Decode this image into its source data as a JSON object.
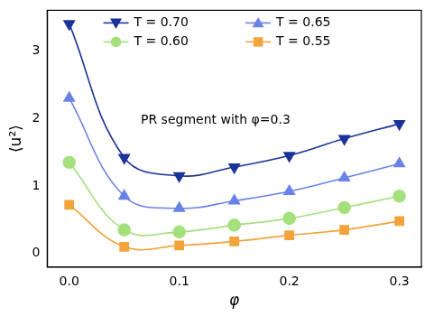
{
  "chart_data": {
    "type": "line",
    "x_label": "φ",
    "y_label": "⟨u²⟩",
    "annotation": "PR segment with φ=0.3",
    "x": [
      0,
      0.05,
      0.1,
      0.15,
      0.2,
      0.25,
      0.3
    ],
    "series": [
      {
        "name": "T = 0.70",
        "color": "#1a3399",
        "marker": "triangle_down",
        "values": [
          3.4,
          1.42,
          1.15,
          1.28,
          1.45,
          1.7,
          1.92
        ]
      },
      {
        "name": "T = 0.65",
        "color": "#6a82e8",
        "marker": "triangle_up",
        "values": [
          2.3,
          0.85,
          0.67,
          0.78,
          0.92,
          1.12,
          1.33
        ]
      },
      {
        "name": "T = 0.60",
        "color": "#a4e07c",
        "marker": "circle",
        "values": [
          1.35,
          0.35,
          0.32,
          0.42,
          0.52,
          0.68,
          0.85
        ]
      },
      {
        "name": "T = 0.55",
        "color": "#f2a33a",
        "marker": "square",
        "values": [
          0.72,
          0.1,
          0.12,
          0.18,
          0.27,
          0.35,
          0.48
        ]
      }
    ],
    "xlim": [
      -0.02,
      0.32
    ],
    "xticks": [
      {
        "value": 0,
        "label": "0.0"
      },
      0.1,
      0.2,
      0.3
    ],
    "ylim": [
      -0.2,
      3.6
    ],
    "yticks": [
      0,
      1,
      2,
      3
    ],
    "grid": false,
    "legend": "top"
  }
}
